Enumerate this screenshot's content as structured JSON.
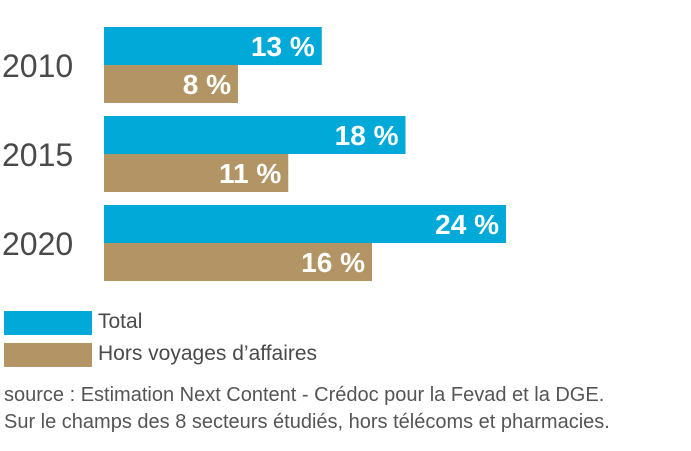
{
  "chart_data": {
    "type": "bar",
    "orientation": "horizontal",
    "categories": [
      "2010",
      "2015",
      "2020"
    ],
    "series": [
      {
        "name": "Total",
        "values": [
          13,
          18,
          24
        ],
        "labels": [
          "13 %",
          "18 %",
          "24 %"
        ],
        "color": "#00a9d8"
      },
      {
        "name": "Hors voyages d’affaires",
        "values": [
          8,
          11,
          16
        ],
        "labels": [
          "8 %",
          "11 %",
          "16 %"
        ],
        "color": "#b39565"
      }
    ],
    "xlim": [
      0,
      24
    ],
    "grid": false,
    "legend": "bottom-left",
    "value_label_color": "#ffffff"
  },
  "source": {
    "line1": "source : Estimation Next Content - Crédoc pour la Fevad et la DGE.",
    "line2": "Sur le champs des 8 secteurs étudiés, hors télécoms et pharmacies."
  }
}
